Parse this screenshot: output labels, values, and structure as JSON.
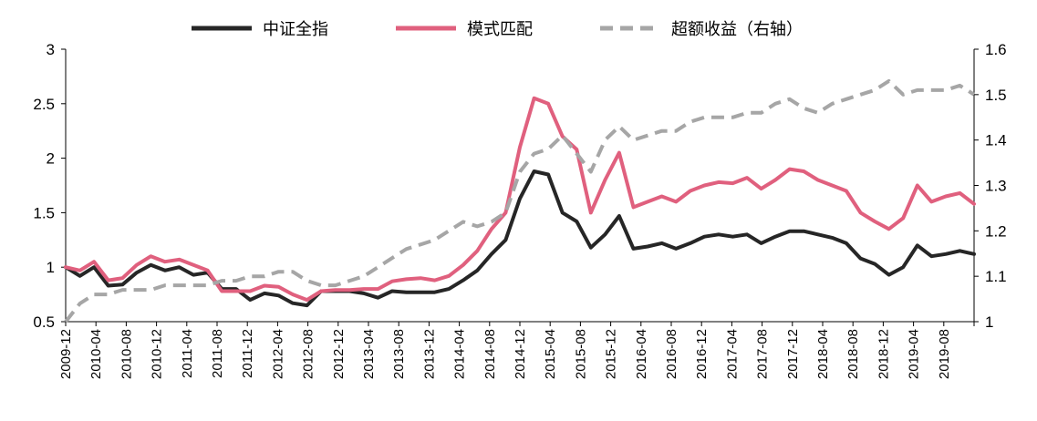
{
  "chart_data": {
    "type": "line",
    "title": "",
    "xlabel": "",
    "ylabel": "",
    "y2label": "",
    "ylim": [
      0.5,
      3
    ],
    "y2lim": [
      1.0,
      1.6
    ],
    "yticks": [
      "0.5",
      "1",
      "1.5",
      "2",
      "2.5",
      "3"
    ],
    "y2ticks": [
      "1",
      "1.1",
      "1.2",
      "1.3",
      "1.4",
      "1.5",
      "1.6"
    ],
    "grid": false,
    "legend_position": "top-center",
    "x_tick_labels": [
      "2009-12",
      "2010-04",
      "2010-08",
      "2010-12",
      "2011-04",
      "2011-08",
      "2011-12",
      "2012-04",
      "2012-08",
      "2012-12",
      "2013-04",
      "2013-08",
      "2013-12",
      "2014-04",
      "2014-08",
      "2014-12",
      "2015-04",
      "2015-08",
      "2015-12",
      "2016-04",
      "2016-08",
      "2016-12",
      "2017-04",
      "2017-08",
      "2017-12",
      "2018-04",
      "2018-08",
      "2018-12",
      "2019-04",
      "2019-08"
    ],
    "x": [
      "2009-12",
      "2010-02",
      "2010-04",
      "2010-06",
      "2010-08",
      "2010-10",
      "2010-12",
      "2011-02",
      "2011-04",
      "2011-06",
      "2011-08",
      "2011-10",
      "2011-12",
      "2012-02",
      "2012-04",
      "2012-06",
      "2012-08",
      "2012-10",
      "2012-12",
      "2013-02",
      "2013-04",
      "2013-06",
      "2013-08",
      "2013-10",
      "2013-12",
      "2014-02",
      "2014-04",
      "2014-06",
      "2014-08",
      "2014-10",
      "2014-12",
      "2015-02",
      "2015-04",
      "2015-05",
      "2015-06",
      "2015-07",
      "2015-08",
      "2015-09",
      "2015-10",
      "2015-11",
      "2015-12",
      "2016-02",
      "2016-04",
      "2016-06",
      "2016-08",
      "2016-10",
      "2016-12",
      "2017-02",
      "2017-04",
      "2017-06",
      "2017-08",
      "2017-10",
      "2017-12",
      "2018-02",
      "2018-04",
      "2018-06",
      "2018-08",
      "2018-10",
      "2018-12",
      "2019-02",
      "2019-04",
      "2019-06",
      "2019-08",
      "2019-10",
      "2019-12"
    ],
    "series": [
      {
        "name": "中证全指",
        "axis": "left",
        "color": "#262626",
        "dash": "solid",
        "values": [
          1.0,
          0.92,
          1.0,
          0.83,
          0.84,
          0.95,
          1.02,
          0.97,
          1.0,
          0.93,
          0.95,
          0.8,
          0.8,
          0.7,
          0.76,
          0.74,
          0.67,
          0.65,
          0.78,
          0.78,
          0.78,
          0.76,
          0.72,
          0.78,
          0.77,
          0.77,
          0.77,
          0.8,
          0.88,
          0.97,
          1.12,
          1.25,
          1.63,
          1.88,
          1.85,
          1.5,
          1.42,
          1.18,
          1.3,
          1.47,
          1.17,
          1.19,
          1.22,
          1.17,
          1.22,
          1.28,
          1.3,
          1.28,
          1.3,
          1.22,
          1.28,
          1.33,
          1.33,
          1.3,
          1.27,
          1.22,
          1.08,
          1.03,
          0.93,
          1.0,
          1.2,
          1.1,
          1.12,
          1.15,
          1.12
        ]
      },
      {
        "name": "模式匹配",
        "axis": "left",
        "color": "#e0607e",
        "dash": "solid",
        "values": [
          1.0,
          0.97,
          1.05,
          0.88,
          0.9,
          1.02,
          1.1,
          1.05,
          1.07,
          1.02,
          0.97,
          0.78,
          0.78,
          0.78,
          0.83,
          0.82,
          0.75,
          0.7,
          0.78,
          0.79,
          0.79,
          0.8,
          0.8,
          0.87,
          0.89,
          0.9,
          0.88,
          0.92,
          1.02,
          1.15,
          1.35,
          1.5,
          2.1,
          2.55,
          2.5,
          2.2,
          2.08,
          1.5,
          1.8,
          2.05,
          1.55,
          1.6,
          1.65,
          1.6,
          1.7,
          1.75,
          1.78,
          1.77,
          1.82,
          1.72,
          1.8,
          1.9,
          1.88,
          1.8,
          1.75,
          1.7,
          1.5,
          1.42,
          1.35,
          1.45,
          1.75,
          1.6,
          1.65,
          1.68,
          1.58
        ]
      },
      {
        "name": "超额收益（右轴）",
        "axis": "right",
        "color": "#a6a6a6",
        "dash": "dashed",
        "values": [
          1.0,
          1.04,
          1.06,
          1.06,
          1.07,
          1.07,
          1.07,
          1.08,
          1.08,
          1.08,
          1.08,
          1.09,
          1.09,
          1.1,
          1.1,
          1.11,
          1.11,
          1.09,
          1.08,
          1.08,
          1.09,
          1.1,
          1.12,
          1.14,
          1.16,
          1.17,
          1.18,
          1.2,
          1.22,
          1.21,
          1.22,
          1.24,
          1.33,
          1.37,
          1.38,
          1.41,
          1.37,
          1.33,
          1.4,
          1.43,
          1.4,
          1.41,
          1.42,
          1.42,
          1.44,
          1.45,
          1.45,
          1.45,
          1.46,
          1.46,
          1.48,
          1.49,
          1.47,
          1.46,
          1.48,
          1.49,
          1.5,
          1.51,
          1.53,
          1.5,
          1.51,
          1.51,
          1.51,
          1.52,
          1.5
        ]
      }
    ]
  }
}
